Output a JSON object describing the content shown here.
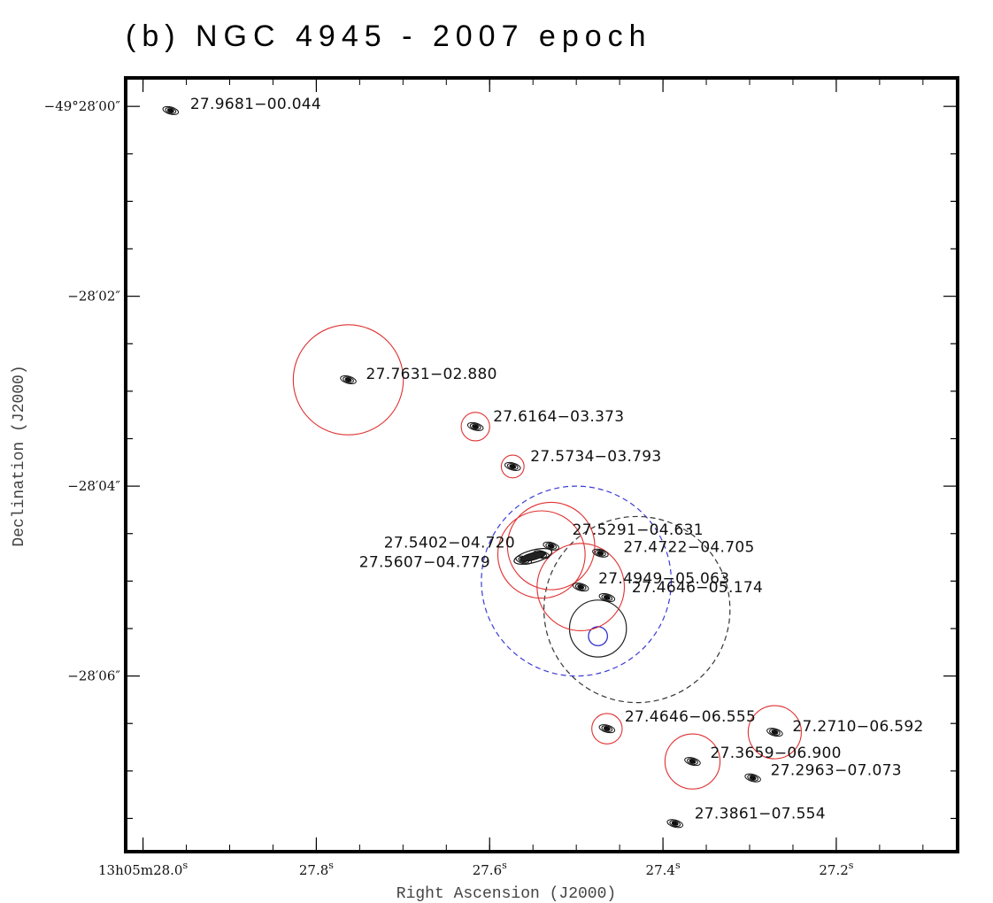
{
  "chart_data": {
    "type": "scatter",
    "title": "(b) NGC 4945 - 2007 epoch",
    "xlabel": "Right Ascension (J2000)",
    "ylabel": "Declination (J2000)",
    "xlim": [
      28.02,
      27.06
    ],
    "ylim": [
      -7.85,
      0.3
    ],
    "xunits": "RA seconds (13h05m)",
    "yunits": "Dec arcsec offset (-49°28')",
    "x_ticks": [
      {
        "value": 28.0,
        "label_main": "13h05m28.0",
        "label_sup": "s"
      },
      {
        "value": 27.8,
        "label_main": "27.8",
        "label_sup": "s"
      },
      {
        "value": 27.6,
        "label_main": "27.6",
        "label_sup": "s"
      },
      {
        "value": 27.4,
        "label_main": "27.4",
        "label_sup": "s"
      },
      {
        "value": 27.2,
        "label_main": "27.2",
        "label_sup": "s"
      }
    ],
    "y_ticks": [
      {
        "value": 0,
        "label": "−49°28′00″"
      },
      {
        "value": -2,
        "label": "−28′02″"
      },
      {
        "value": -4,
        "label": "−28′04″"
      },
      {
        "value": -6,
        "label": "−28′06″"
      }
    ],
    "sources": [
      {
        "label": "27.9681−00.044",
        "ra": 27.9681,
        "dec": -0.044,
        "circle_r": null
      },
      {
        "label": "27.7631−02.880",
        "ra": 27.7631,
        "dec": -2.88,
        "circle_r": 0.58
      },
      {
        "label": "27.6164−03.373",
        "ra": 27.6164,
        "dec": -3.373,
        "circle_r": 0.15
      },
      {
        "label": "27.5734−03.793",
        "ra": 27.5734,
        "dec": -3.793,
        "circle_r": 0.12
      },
      {
        "label": "27.5402−04.720",
        "ra": 27.5402,
        "dec": -4.72,
        "circle_r": 0.46
      },
      {
        "label": "27.5291−04.631",
        "ra": 27.5291,
        "dec": -4.631,
        "circle_r": 0.46
      },
      {
        "label": "27.5607−04.779",
        "ra": 27.5607,
        "dec": -4.779,
        "circle_r": null
      },
      {
        "label": "27.4722−04.705",
        "ra": 27.4722,
        "dec": -4.705,
        "circle_r": null
      },
      {
        "label": "27.4949−05.063",
        "ra": 27.4949,
        "dec": -5.063,
        "circle_r": 0.46
      },
      {
        "label": "27.4646−05.174",
        "ra": 27.4646,
        "dec": -5.174,
        "circle_r": null
      },
      {
        "label": "27.4646−06.555",
        "ra": 27.4646,
        "dec": -6.555,
        "circle_r": 0.16
      },
      {
        "label": "27.2710−06.592",
        "ra": 27.271,
        "dec": -6.592,
        "circle_r": 0.28
      },
      {
        "label": "27.3659−06.900",
        "ra": 27.3659,
        "dec": -6.9,
        "circle_r": 0.29
      },
      {
        "label": "27.2963−07.073",
        "ra": 27.2963,
        "dec": -7.073,
        "circle_r": null
      },
      {
        "label": "27.3861−07.554",
        "ra": 27.3861,
        "dec": -7.554,
        "circle_r": null
      }
    ],
    "reference_circles": [
      {
        "name": "blue-dashed",
        "ra": 27.5,
        "dec": -5.0,
        "r": 1.0,
        "color": "#3b3bd6",
        "dashed": true
      },
      {
        "name": "black-dashed",
        "ra": 27.43,
        "dec": -5.3,
        "r": 0.98,
        "color": "#333333",
        "dashed": true
      },
      {
        "name": "black-solid",
        "ra": 27.475,
        "dec": -5.5,
        "r": 0.3,
        "color": "#222222",
        "dashed": false
      },
      {
        "name": "blue-solid",
        "ra": 27.475,
        "dec": -5.58,
        "r": 0.1,
        "color": "#2222cc",
        "dashed": false
      }
    ],
    "colors": {
      "source_circle": "#e03030",
      "contour": "#111111",
      "axis": "#000000"
    }
  }
}
